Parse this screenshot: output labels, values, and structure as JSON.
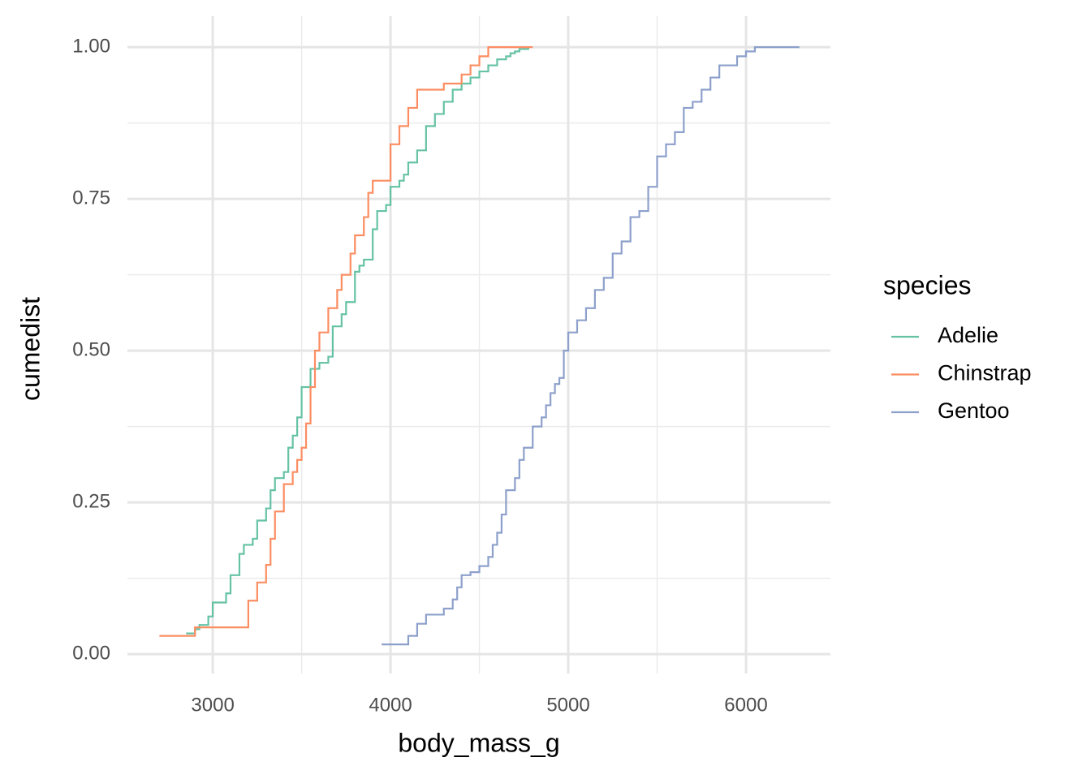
{
  "chart_data": {
    "type": "step",
    "x_label": "body_mass_g",
    "y_label": "cumedist",
    "legend_title": "species",
    "legend": "right",
    "xlim": [
      2520,
      6475
    ],
    "ylim": [
      -0.032,
      1.051
    ],
    "xticks": [
      3000,
      4000,
      5000,
      6000
    ],
    "yticks": [
      {
        "value": 0,
        "label": "0.00"
      },
      {
        "value": 0.25,
        "label": "0.25"
      },
      {
        "value": 0.5,
        "label": "0.50"
      },
      {
        "value": 0.75,
        "label": "0.75"
      },
      {
        "value": 1,
        "label": "1.00"
      }
    ],
    "xminor": [
      3500,
      4500,
      5500
    ],
    "yminor": [
      0.125,
      0.375,
      0.625,
      0.875
    ],
    "grid": true,
    "series": [
      {
        "name": "Adelie",
        "color": "#66c2a5",
        "x": [
          2850,
          2900,
          2925,
          2975,
          3000,
          3075,
          3100,
          3150,
          3175,
          3225,
          3250,
          3300,
          3325,
          3350,
          3400,
          3425,
          3450,
          3475,
          3500,
          3550,
          3600,
          3650,
          3675,
          3725,
          3750,
          3800,
          3825,
          3850,
          3900,
          3925,
          3975,
          4000,
          4050,
          4075,
          4100,
          4150,
          4200,
          4250,
          4300,
          4350,
          4400,
          4450,
          4500,
          4550,
          4600,
          4650,
          4675,
          4700,
          4725,
          4775
        ],
        "values": [
          0.034,
          0.041,
          0.048,
          0.062,
          0.085,
          0.1,
          0.13,
          0.165,
          0.18,
          0.19,
          0.22,
          0.24,
          0.27,
          0.29,
          0.3,
          0.34,
          0.36,
          0.39,
          0.44,
          0.47,
          0.48,
          0.49,
          0.54,
          0.56,
          0.58,
          0.63,
          0.64,
          0.65,
          0.7,
          0.73,
          0.74,
          0.77,
          0.78,
          0.79,
          0.81,
          0.83,
          0.87,
          0.89,
          0.91,
          0.93,
          0.94,
          0.95,
          0.96,
          0.97,
          0.98,
          0.985,
          0.99,
          0.993,
          0.997,
          1.0
        ]
      },
      {
        "name": "Chinstrap",
        "color": "#fc8d62",
        "x": [
          2700,
          2900,
          3200,
          3250,
          3300,
          3325,
          3350,
          3400,
          3450,
          3475,
          3500,
          3525,
          3550,
          3575,
          3600,
          3650,
          3700,
          3725,
          3775,
          3800,
          3850,
          3875,
          3900,
          4000,
          4050,
          4100,
          4150,
          4300,
          4400,
          4450,
          4500,
          4550,
          4800
        ],
        "values": [
          0.03,
          0.044,
          0.088,
          0.118,
          0.147,
          0.19,
          0.235,
          0.28,
          0.3,
          0.32,
          0.34,
          0.38,
          0.44,
          0.5,
          0.53,
          0.57,
          0.6,
          0.625,
          0.66,
          0.69,
          0.72,
          0.76,
          0.78,
          0.84,
          0.87,
          0.9,
          0.93,
          0.94,
          0.955,
          0.97,
          0.985,
          1.0,
          1.0
        ]
      },
      {
        "name": "Gentoo",
        "color": "#8da0cb",
        "x": [
          3950,
          4100,
          4150,
          4200,
          4300,
          4350,
          4375,
          4400,
          4450,
          4500,
          4550,
          4575,
          4600,
          4625,
          4650,
          4700,
          4725,
          4750,
          4800,
          4850,
          4875,
          4900,
          4925,
          4950,
          4975,
          5000,
          5050,
          5100,
          5150,
          5200,
          5250,
          5300,
          5350,
          5400,
          5450,
          5500,
          5550,
          5600,
          5650,
          5700,
          5750,
          5800,
          5850,
          5950,
          6000,
          6050,
          6300
        ],
        "values": [
          0.016,
          0.03,
          0.05,
          0.065,
          0.075,
          0.09,
          0.11,
          0.13,
          0.135,
          0.145,
          0.16,
          0.18,
          0.2,
          0.23,
          0.27,
          0.29,
          0.32,
          0.34,
          0.375,
          0.39,
          0.41,
          0.43,
          0.445,
          0.455,
          0.5,
          0.53,
          0.55,
          0.57,
          0.6,
          0.62,
          0.66,
          0.68,
          0.72,
          0.73,
          0.77,
          0.82,
          0.84,
          0.86,
          0.9,
          0.91,
          0.93,
          0.95,
          0.97,
          0.985,
          0.993,
          1.0,
          1.0
        ]
      }
    ]
  }
}
